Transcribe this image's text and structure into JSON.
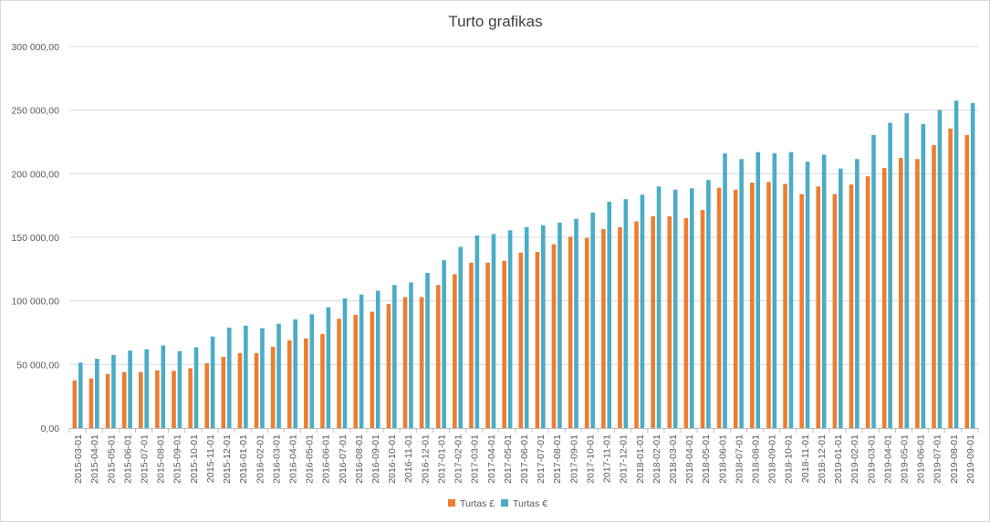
{
  "chart_data": {
    "type": "bar",
    "title": "Turto grafikas",
    "xlabel": "",
    "ylabel": "",
    "ylim": [
      0,
      300000
    ],
    "yticks": [
      "0,00",
      "50 000,00",
      "100 000,00",
      "150 000,00",
      "200 000,00",
      "250 000,00",
      "300 000,00"
    ],
    "grid": true,
    "legend_position": "bottom",
    "categories": [
      "2015-03-01",
      "2015-04-01",
      "2015-05-01",
      "2015-06-01",
      "2015-07-01",
      "2015-08-01",
      "2015-09-01",
      "2015-10-01",
      "2015-11-01",
      "2015-12-01",
      "2016-01-01",
      "2016-02-01",
      "2016-03-01",
      "2016-04-01",
      "2016-05-01",
      "2016-06-01",
      "2016-07-01",
      "2016-08-01",
      "2016-09-01",
      "2016-10-01",
      "2016-11-01",
      "2016-12-01",
      "2017-01-01",
      "2017-02-01",
      "2017-03-01",
      "2017-04-01",
      "2017-05-01",
      "2017-06-01",
      "2017-07-01",
      "2017-08-01",
      "2017-09-01",
      "2017-10-01",
      "2017-11-01",
      "2017-12-01",
      "2018-01-01",
      "2018-02-01",
      "2018-03-01",
      "2018-04-01",
      "2018-05-01",
      "2018-06-01",
      "2018-07-01",
      "2018-08-01",
      "2018-09-01",
      "2018-10-01",
      "2018-11-01",
      "2018-12-01",
      "2019-01-01",
      "2019-02-01",
      "2019-03-01",
      "2019-04-01",
      "2019-05-01",
      "2019-06-01",
      "2019-07-01",
      "2019-08-01",
      "2019-09-01"
    ],
    "series": [
      {
        "name": "Turtas £",
        "color": "#ed7d31",
        "values": [
          37500,
          39000,
          42500,
          44000,
          44000,
          45500,
          45000,
          47000,
          51000,
          56000,
          59000,
          59000,
          64000,
          69000,
          70500,
          74000,
          86000,
          89000,
          91500,
          97500,
          103000,
          103000,
          112500,
          121000,
          130000,
          130000,
          131500,
          138000,
          138500,
          144500,
          150500,
          149500,
          156500,
          158000,
          162500,
          166500,
          166500,
          165000,
          171500,
          189000,
          187500,
          193000,
          193500,
          192000,
          184000,
          190000,
          184000,
          191500,
          198000,
          204500,
          212500,
          211500,
          222500,
          235500,
          230500
        ]
      },
      {
        "name": "Turtas €",
        "color": "#4bacc6",
        "values": [
          51500,
          54500,
          57500,
          61000,
          62000,
          65000,
          60500,
          63500,
          72000,
          79000,
          80500,
          78500,
          82000,
          85500,
          89500,
          95000,
          102000,
          105000,
          108000,
          112500,
          114500,
          122000,
          132000,
          142500,
          151500,
          152500,
          155500,
          158000,
          159500,
          161500,
          164500,
          169500,
          178000,
          180000,
          183500,
          190000,
          187500,
          188500,
          195000,
          216000,
          211500,
          217000,
          216000,
          217000,
          209500,
          215000,
          204000,
          211500,
          230500,
          240000,
          247500,
          239000,
          250000,
          257500,
          255500
        ]
      }
    ]
  }
}
